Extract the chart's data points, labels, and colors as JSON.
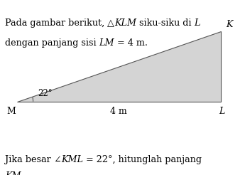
{
  "M": [
    0.07,
    0.42
  ],
  "L": [
    0.9,
    0.42
  ],
  "K": [
    0.9,
    0.82
  ],
  "triangle_fill": "#d4d4d4",
  "triangle_edge": "#555555",
  "bg_color": "#ffffff",
  "font_size_body": 9.2,
  "font_size_label": 9.0,
  "font_size_angle": 8.5,
  "angle_label": "22°",
  "label_M": "M",
  "label_L": "L",
  "label_K": "K",
  "label_4m": "4 m"
}
